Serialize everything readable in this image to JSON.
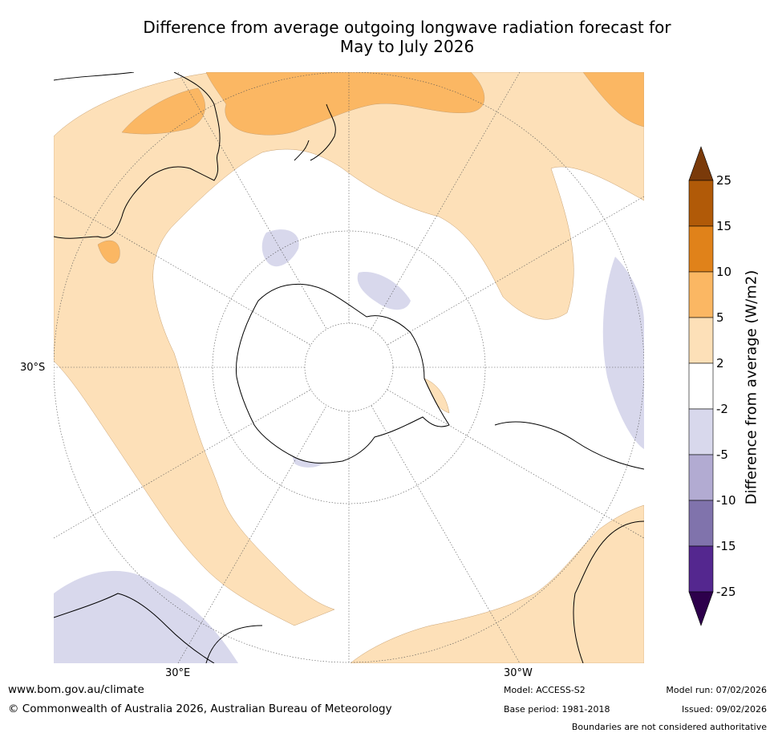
{
  "title": {
    "line1": "Difference from average outgoing longwave radiation forecast for",
    "line2": "May to July 2026"
  },
  "map": {
    "projection": "south-polar-stereographic",
    "lat_labels": [
      "30°S"
    ],
    "lon_labels": [
      "30°E",
      "30°W"
    ]
  },
  "colorbar": {
    "label": "Difference from average (W/m2)",
    "ticks": [
      "25",
      "15",
      "10",
      "5",
      "2",
      "-2",
      "-5",
      "-10",
      "-15",
      "-25"
    ],
    "colors": [
      "#7a3a0a",
      "#b15a08",
      "#e0821a",
      "#fbb763",
      "#fde0b8",
      "#ffffff",
      "#d8d8ec",
      "#b2abd2",
      "#8073ac",
      "#54278f",
      "#2d004b"
    ]
  },
  "footer": {
    "website": "www.bom.gov.au/climate",
    "copyright": "© Commonwealth of Australia 2026, Australian Bureau of Meteorology",
    "model": "Model: ACCESS-S2",
    "base_period": "Base period: 1981-2018",
    "model_run": "Model run: 07/02/2026",
    "issued": "Issued: 09/02/2026",
    "disclaimer": "Boundaries are not considered authoritative"
  }
}
